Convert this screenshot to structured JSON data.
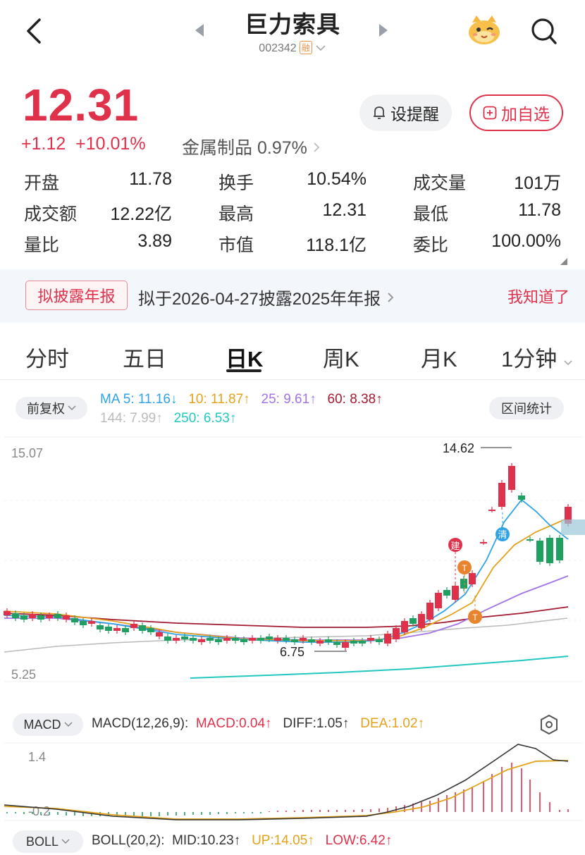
{
  "header": {
    "title": "巨力索具",
    "code": "002342",
    "margin_tag": "融"
  },
  "quote": {
    "price": "12.31",
    "change": "+1.12",
    "change_pct": "+10.01%",
    "sector_name": "金属制品",
    "sector_pct": "0.97%",
    "alert_label": "设提醒",
    "fav_label": "加自选"
  },
  "stats": [
    [
      {
        "label": "开盘",
        "value": "11.78",
        "color": "red"
      },
      {
        "label": "换手",
        "value": "10.54%",
        "color": "black"
      },
      {
        "label": "成交量",
        "value": "101万",
        "color": "black"
      }
    ],
    [
      {
        "label": "成交额",
        "value": "12.22亿",
        "color": "black"
      },
      {
        "label": "最高",
        "value": "12.31",
        "color": "red"
      },
      {
        "label": "最低",
        "value": "11.78",
        "color": "red"
      }
    ],
    [
      {
        "label": "量比",
        "value": "3.89",
        "color": "black"
      },
      {
        "label": "市值",
        "value": "118.1亿",
        "color": "black"
      },
      {
        "label": "委比",
        "value": "100.00%",
        "color": "red"
      }
    ]
  ],
  "notice": {
    "tag": "拟披露年报",
    "text": "拟于2026-04-27披露2025年年报",
    "close": "我知道了"
  },
  "tabs": [
    "分时",
    "五日",
    "日K",
    "周K",
    "月K",
    "1分钟"
  ],
  "active_tab": "日K",
  "ma_legend": {
    "adjust_label": "前复权",
    "range_label": "区间统计",
    "ma5": "MA 5: 11.16",
    "ma10": "10: 11.87",
    "ma25": "25: 9.61",
    "ma60": "60: 8.38",
    "ma144": "144: 7.99",
    "ma250": "250: 6.53"
  },
  "kline": {
    "y_max_label": "15.07",
    "y_min_label": "5.25",
    "high_label": "14.62",
    "low_label": "6.75",
    "marker_build": "建",
    "marker_t": "T",
    "marker_clear": "清"
  },
  "macd": {
    "selector": "MACD",
    "params": "MACD(12,26,9):",
    "macd": "MACD:0.04",
    "diff": "DIFF:1.05",
    "dea": "DEA:1.02",
    "y_top": "1.4",
    "y_bottom": "-0.2"
  },
  "boll": {
    "selector": "BOLL",
    "params": "BOLL(20,2):",
    "mid": "MID:10.23",
    "up": "UP:14.05",
    "low": "LOW:6.42"
  },
  "colors": {
    "up": "#e0314b",
    "down": "#20a060",
    "ma5": "#2fa3e6",
    "ma10": "#e3a21a",
    "ma25": "#a274e8",
    "ma60": "#a4192f",
    "ma144": "#bbbbbb",
    "ma250": "#22c8c0"
  }
}
